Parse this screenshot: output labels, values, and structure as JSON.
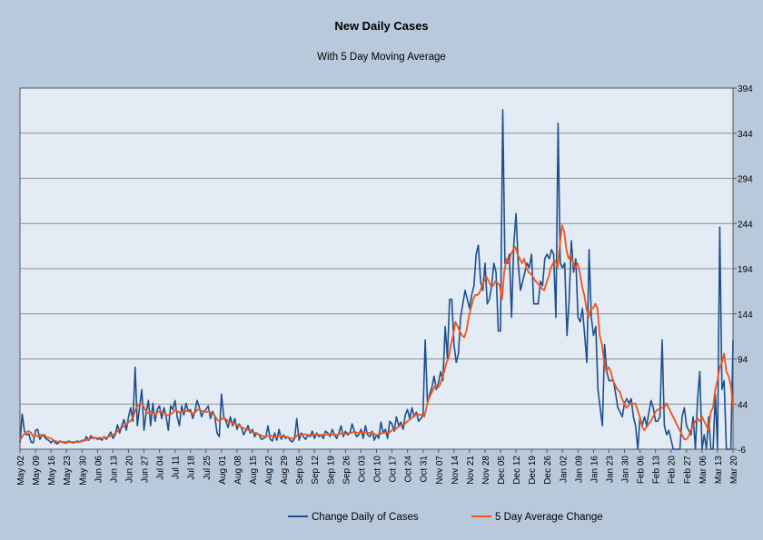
{
  "chart_data": {
    "type": "line",
    "title": "New Daily Cases",
    "subtitle": "With 5 Day Moving Average",
    "y_axis": {
      "position": "right",
      "min": -6,
      "max": 394,
      "ticks": [
        -6,
        44,
        94,
        144,
        194,
        244,
        294,
        344,
        394
      ],
      "grid": true
    },
    "x_axis": {
      "start_date": "2020-05-02",
      "end_date": "2021-03-20",
      "tick_labels": [
        "May 02",
        "May 09",
        "May 16",
        "May 23",
        "May 30",
        "Jun 06",
        "Jun 13",
        "Jun 20",
        "Jun 27",
        "Jul 04",
        "Jul 11",
        "Jul 18",
        "Jul 25",
        "Aug 01",
        "Aug 08",
        "Aug 15",
        "Aug 22",
        "Aug 29",
        "Sep 05",
        "Sep 12",
        "Sep 19",
        "Sep 26",
        "Oct 03",
        "Oct 10",
        "Oct 17",
        "Oct 24",
        "Oct 31",
        "Nov 07",
        "Nov 14",
        "Nov 21",
        "Nov 28",
        "Dec 05",
        "Dec 12",
        "Dec 19",
        "Dec 26",
        "Jan 02",
        "Jan 09",
        "Jan 16",
        "Jan 23",
        "Jan 30",
        "Feb 06",
        "Feb 13",
        "Feb 20",
        "Feb 27",
        "Mar 06",
        "Mar 13",
        "Mar 20"
      ],
      "grid": false
    },
    "legend": {
      "position": "bottom"
    },
    "series": [
      {
        "name": "Change Daily of Cases",
        "color": "#1f4f8a",
        "values": [
          1,
          33,
          14,
          10,
          11,
          2,
          1,
          15,
          16,
          5,
          10,
          8,
          5,
          4,
          1,
          4,
          1,
          0,
          3,
          2,
          1,
          1,
          3,
          2,
          1,
          2,
          3,
          2,
          4,
          3,
          8,
          4,
          9,
          6,
          7,
          5,
          6,
          4,
          8,
          5,
          9,
          13,
          6,
          10,
          21,
          12,
          20,
          27,
          15,
          30,
          40,
          25,
          85,
          20,
          40,
          60,
          15,
          35,
          48,
          20,
          45,
          25,
          38,
          42,
          28,
          40,
          30,
          15,
          42,
          38,
          48,
          30,
          20,
          42,
          32,
          45,
          36,
          38,
          28,
          36,
          48,
          40,
          30,
          36,
          38,
          42,
          28,
          36,
          30,
          12,
          8,
          55,
          30,
          25,
          18,
          30,
          20,
          28,
          16,
          22,
          18,
          10,
          15,
          20,
          12,
          16,
          8,
          12,
          10,
          5,
          6,
          8,
          20,
          5,
          3,
          12,
          4,
          16,
          5,
          10,
          6,
          8,
          4,
          2,
          6,
          28,
          4,
          12,
          8,
          5,
          10,
          8,
          14,
          6,
          12,
          8,
          10,
          6,
          14,
          12,
          8,
          16,
          10,
          6,
          12,
          20,
          8,
          14,
          10,
          12,
          22,
          14,
          8,
          10,
          16,
          6,
          20,
          10,
          8,
          14,
          4,
          10,
          6,
          24,
          12,
          16,
          6,
          25,
          22,
          14,
          30,
          20,
          24,
          16,
          32,
          38,
          28,
          40,
          30,
          35,
          25,
          28,
          32,
          115,
          45,
          55,
          62,
          75,
          60,
          68,
          80,
          70,
          130,
          95,
          160,
          160,
          110,
          90,
          100,
          140,
          155,
          170,
          160,
          150,
          165,
          175,
          210,
          220,
          180,
          170,
          200,
          155,
          160,
          175,
          200,
          190,
          125,
          125,
          370,
          200,
          200,
          210,
          140,
          220,
          255,
          200,
          170,
          180,
          190,
          200,
          195,
          210,
          155,
          155,
          155,
          180,
          175,
          205,
          210,
          205,
          215,
          210,
          140,
          355,
          200,
          195,
          200,
          120,
          160,
          225,
          190,
          205,
          140,
          135,
          150,
          120,
          90,
          215,
          140,
          120,
          130,
          60,
          40,
          20,
          110,
          80,
          70,
          70,
          70,
          55,
          40,
          35,
          30,
          45,
          50,
          45,
          50,
          30,
          20,
          -6,
          30,
          20,
          30,
          20,
          35,
          48,
          40,
          25,
          25,
          30,
          115,
          20,
          10,
          15,
          5,
          -6,
          -6,
          -6,
          -6,
          30,
          40,
          20,
          15,
          10,
          30,
          -6,
          50,
          80,
          -6,
          10,
          -6,
          30,
          -6,
          -6,
          55,
          -6,
          240,
          60,
          70,
          -6,
          -6,
          -6,
          115
        ]
      },
      {
        "name": "5 Day Average Change",
        "color": "#f0541a",
        "values": [
          4,
          8,
          11,
          13,
          14,
          12,
          8,
          10,
          8,
          10,
          9,
          10,
          7,
          7,
          6,
          4,
          3,
          2,
          2,
          2,
          2,
          2,
          2,
          2,
          2,
          2,
          2,
          2,
          3,
          4,
          4,
          5,
          6,
          7,
          7,
          6,
          7,
          6,
          7,
          7,
          8,
          9,
          10,
          12,
          14,
          17,
          18,
          20,
          22,
          24,
          26,
          30,
          38,
          42,
          45,
          44,
          40,
          35,
          34,
          36,
          34,
          32,
          35,
          36,
          35,
          34,
          32,
          32,
          33,
          35,
          38,
          36,
          34,
          36,
          36,
          36,
          36,
          35,
          33,
          35,
          38,
          38,
          36,
          36,
          35,
          36,
          34,
          33,
          30,
          26,
          25,
          28,
          28,
          27,
          24,
          24,
          22,
          22,
          20,
          20,
          18,
          17,
          16,
          15,
          14,
          13,
          12,
          11,
          10,
          9,
          8,
          8,
          9,
          9,
          8,
          8,
          8,
          9,
          8,
          8,
          8,
          7,
          6,
          6,
          7,
          10,
          10,
          10,
          11,
          10,
          10,
          9,
          10,
          10,
          10,
          10,
          10,
          10,
          10,
          10,
          10,
          10,
          10,
          10,
          11,
          12,
          11,
          11,
          12,
          12,
          13,
          13,
          12,
          12,
          13,
          12,
          13,
          12,
          12,
          12,
          10,
          10,
          10,
          12,
          12,
          13,
          12,
          14,
          16,
          16,
          18,
          20,
          21,
          21,
          24,
          26,
          28,
          30,
          32,
          33,
          32,
          32,
          30,
          40,
          50,
          55,
          60,
          65,
          62,
          65,
          72,
          80,
          90,
          95,
          110,
          120,
          135,
          130,
          125,
          120,
          118,
          125,
          140,
          150,
          160,
          165,
          165,
          168,
          175,
          180,
          185,
          180,
          175,
          175,
          180,
          178,
          175,
          160,
          190,
          205,
          200,
          210,
          215,
          218,
          210,
          205,
          200,
          205,
          195,
          190,
          188,
          185,
          180,
          178,
          175,
          172,
          170,
          178,
          185,
          195,
          200,
          202,
          195,
          220,
          242,
          235,
          215,
          205,
          210,
          200,
          195,
          200,
          190,
          175,
          165,
          150,
          140,
          150,
          150,
          155,
          150,
          120,
          110,
          90,
          80,
          85,
          80,
          70,
          65,
          60,
          58,
          50,
          45,
          40,
          42,
          45,
          44,
          45,
          38,
          30,
          20,
          15,
          18,
          22,
          25,
          30,
          35,
          38,
          38,
          40,
          40,
          45,
          40,
          35,
          30,
          25,
          20,
          15,
          10,
          5,
          5,
          8,
          15,
          20,
          25,
          28,
          25,
          30,
          25,
          20,
          15,
          35,
          40,
          60,
          70,
          85,
          90,
          100,
          80,
          75,
          65,
          40
        ]
      }
    ]
  }
}
